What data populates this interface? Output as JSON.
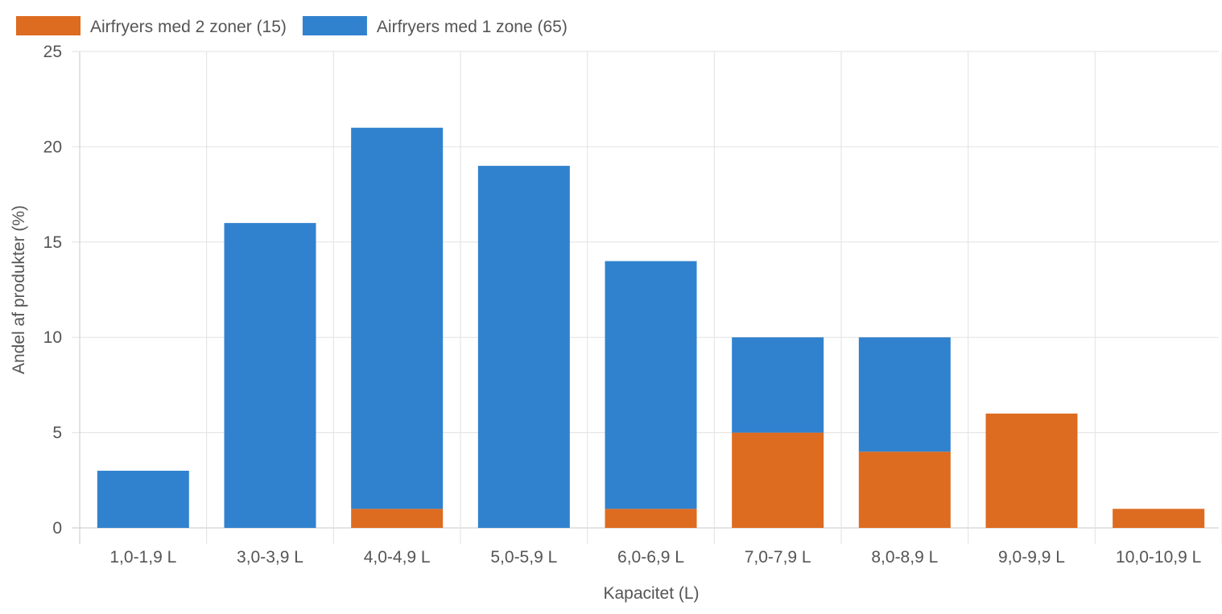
{
  "chart_data": {
    "type": "bar",
    "stacked": true,
    "title": "",
    "xlabel": "Kapacitet (L)",
    "ylabel": "Andel af produkter (%)",
    "ylim": [
      0,
      25
    ],
    "yticks": [
      "0",
      "5",
      "10",
      "15",
      "20",
      "25"
    ],
    "grid": true,
    "legend_position": "top-left",
    "categories": [
      "1,0-1,9 L",
      "3,0-3,9 L",
      "4,0-4,9 L",
      "5,0-5,9 L",
      "6,0-6,9 L",
      "7,0-7,9 L",
      "8,0-8,9 L",
      "9,0-9,9 L",
      "10,0-10,9 L"
    ],
    "series": [
      {
        "name": "Airfryers med 2 zoner (15)",
        "color": "#dd6b20",
        "values": [
          0,
          0,
          1,
          0,
          1,
          5,
          4,
          6,
          1
        ]
      },
      {
        "name": "Airfryers med 1 zone (65)",
        "color": "#3182ce",
        "values": [
          3,
          16,
          20,
          19,
          13,
          5,
          6,
          0,
          0
        ]
      }
    ]
  }
}
